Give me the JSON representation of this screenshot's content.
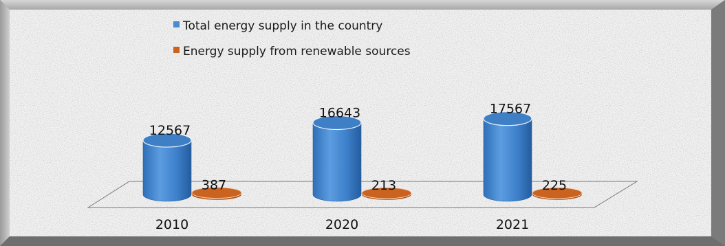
{
  "chart_data": {
    "type": "bar",
    "style": "3d-cylinder",
    "categories": [
      "2010",
      "2020",
      "2021"
    ],
    "series": [
      {
        "name": "Total energy supply in the country",
        "values": [
          12567,
          16643,
          17567
        ],
        "color": "#4a8bd0"
      },
      {
        "name": "Energy supply from renewable sources",
        "values": [
          387,
          213,
          225
        ],
        "color": "#c9631f"
      }
    ],
    "title": "",
    "xlabel": "",
    "ylabel": "",
    "ylim": [
      0,
      20000
    ],
    "grid": false,
    "legend": "top-center"
  }
}
